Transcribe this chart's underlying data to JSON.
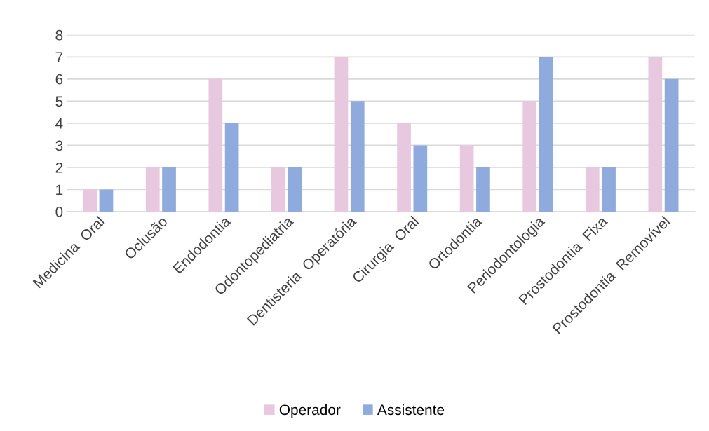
{
  "chart_data": {
    "type": "bar",
    "categories": [
      "Medicina  Oral",
      "Oclusão",
      "Endodontia",
      "Odontopediatria",
      "Dentisteria  Operatória",
      "Cirurgia  Oral",
      "Ortodontia",
      "Periodontologia",
      "Prostodontia  Fixa",
      "Prostodontia  Removível"
    ],
    "series": [
      {
        "name": "Operador",
        "color": "#e8c8de",
        "values": [
          1,
          2,
          6,
          2,
          7,
          4,
          3,
          5,
          2,
          7
        ]
      },
      {
        "name": "Assistente",
        "color": "#8faadc",
        "values": [
          1,
          2,
          4,
          2,
          5,
          3,
          2,
          7,
          2,
          6
        ]
      }
    ],
    "ylim": [
      0,
      8
    ],
    "yticks": [
      0,
      1,
      2,
      3,
      4,
      5,
      6,
      7,
      8
    ],
    "grid": "y",
    "legend": "bottom"
  }
}
